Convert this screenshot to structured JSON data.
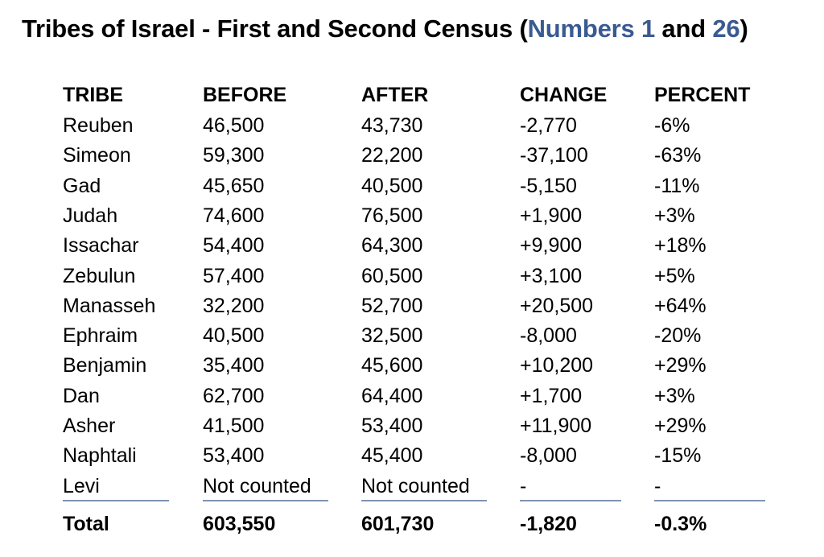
{
  "title": {
    "prefix": "Tribes of Israel - First and Second Census (",
    "link_book": "Numbers",
    "link_ch1": "1",
    "and": " and ",
    "link_ch2": "26",
    "suffix": ")"
  },
  "table": {
    "headers": [
      "TRIBE",
      "BEFORE",
      "AFTER",
      "CHANGE",
      "PERCENT"
    ],
    "rows": [
      [
        "Reuben",
        "46,500",
        "43,730",
        "-2,770",
        "-6%"
      ],
      [
        "Simeon",
        "59,300",
        "22,200",
        "-37,100",
        "-63%"
      ],
      [
        "Gad",
        "45,650",
        "40,500",
        "-5,150",
        "-11%"
      ],
      [
        "Judah",
        "74,600",
        "76,500",
        "+1,900",
        "+3%"
      ],
      [
        "Issachar",
        "54,400",
        "64,300",
        "+9,900",
        "+18%"
      ],
      [
        "Zebulun",
        "57,400",
        "60,500",
        "+3,100",
        "+5%"
      ],
      [
        "Manasseh",
        "32,200",
        "52,700",
        "+20,500",
        "+64%"
      ],
      [
        "Ephraim",
        "40,500",
        "32,500",
        "-8,000",
        "-20%"
      ],
      [
        "Benjamin",
        "35,400",
        "45,600",
        "+10,200",
        "+29%"
      ],
      [
        "Dan",
        "62,700",
        "64,400",
        "+1,700",
        "+3%"
      ],
      [
        "Asher",
        "41,500",
        "53,400",
        "+11,900",
        "+29%"
      ],
      [
        "Naphtali",
        "53,400",
        "45,400",
        "-8,000",
        "-15%"
      ],
      [
        "Levi",
        "Not counted",
        "Not counted",
        "-",
        "-"
      ]
    ],
    "total": [
      "Total",
      "603,550",
      "601,730",
      "-1,820",
      "-0.3%"
    ]
  },
  "colors": {
    "link": "#3a5a92",
    "rule": "#7f93b3"
  }
}
